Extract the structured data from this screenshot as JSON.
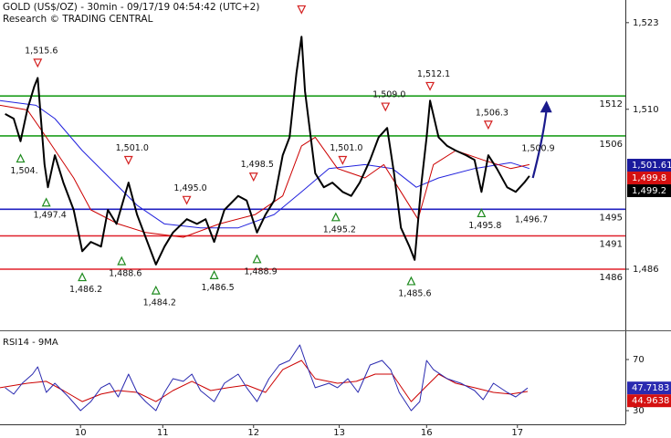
{
  "chart_data": [
    {
      "type": "line",
      "title": "GOLD (US$/OZ) - 30min - 09/17/19 04:54:42 (UTC+2)",
      "subtitle": "Research © TRADING CENTRAL",
      "xlim": [
        0,
        365
      ],
      "ylim": [
        1477.1,
        1526.4
      ],
      "yticks": [
        {
          "value": 1523,
          "label": "1,523"
        },
        {
          "value": 1510,
          "label": "1,510"
        },
        {
          "value": 1486,
          "label": "1,486"
        }
      ],
      "series": [
        {
          "color": "#000000",
          "x": [
            3,
            8,
            12,
            16,
            20,
            22,
            26,
            28,
            32,
            37,
            43,
            48,
            53,
            59,
            63,
            68,
            75,
            80,
            85,
            91,
            96,
            101,
            109,
            115,
            120,
            125,
            131,
            139,
            144,
            150,
            155,
            160,
            165,
            169,
            173,
            176,
            178,
            184,
            189,
            194,
            200,
            205,
            210,
            216,
            221,
            226,
            230,
            234,
            239,
            242,
            246,
            249,
            251,
            256,
            261,
            266,
            272,
            277,
            281,
            285,
            290,
            296,
            301,
            306,
            309
          ],
          "values": [
            1509.3,
            1508.6,
            1505.2,
            1510,
            1513.4,
            1514.7,
            1501.7,
            1498.3,
            1503.1,
            1499,
            1494.9,
            1488.7,
            1490.1,
            1489.4,
            1494.9,
            1492.8,
            1499,
            1494.2,
            1490.8,
            1486.7,
            1489.4,
            1491.5,
            1493.5,
            1492.8,
            1493.5,
            1490.1,
            1494.9,
            1497,
            1496.3,
            1491.5,
            1494.2,
            1496.3,
            1503.1,
            1505.8,
            1515.4,
            1520.9,
            1512.7,
            1500.4,
            1498.3,
            1499,
            1497.6,
            1497,
            1499,
            1502.4,
            1505.8,
            1507.2,
            1500.4,
            1492.2,
            1489.4,
            1487.4,
            1499,
            1505.8,
            1511.3,
            1505.8,
            1504.5,
            1503.8,
            1503.1,
            1502.4,
            1497.6,
            1503.1,
            1501.1,
            1498.3,
            1497.6,
            1499,
            1500
          ]
        },
        {
          "color": "#cc0000",
          "x": [
            0,
            16,
            27,
            43,
            53,
            69,
            85,
            107,
            128,
            149,
            165,
            176,
            184,
            197,
            213,
            224,
            234,
            244,
            253,
            266,
            282,
            298,
            309
          ],
          "values": [
            1510.6,
            1509.9,
            1505.8,
            1499.7,
            1494.9,
            1492.8,
            1491.5,
            1490.8,
            1492.8,
            1494.2,
            1497,
            1504.5,
            1505.8,
            1501.1,
            1499.7,
            1501.7,
            1497.6,
            1493.5,
            1501.7,
            1503.8,
            1502.4,
            1501.1,
            1501.7
          ]
        },
        {
          "color": "#2222dd",
          "x": [
            0,
            21,
            32,
            48,
            64,
            80,
            96,
            117,
            139,
            160,
            176,
            192,
            213,
            229,
            243,
            256,
            277,
            298,
            309
          ],
          "values": [
            1511.3,
            1510.6,
            1508.6,
            1503.8,
            1499.7,
            1495.6,
            1492.8,
            1492.2,
            1492.2,
            1494.2,
            1497.6,
            1501.1,
            1501.7,
            1501.1,
            1498.3,
            1499.7,
            1501.1,
            1502,
            1501.1
          ]
        }
      ],
      "levels": [
        {
          "value": 1512,
          "color": "#1e9e1e"
        },
        {
          "value": 1506,
          "color": "#1e9e1e"
        },
        {
          "value": 1495,
          "color": "#2020c0"
        },
        {
          "value": 1491,
          "color": "#e0202a"
        },
        {
          "value": 1486,
          "color": "#e0202a"
        }
      ],
      "annotations": [
        {
          "x": 22,
          "value": 1515.6,
          "label": "1,515.6",
          "kind": "high",
          "marker": true
        },
        {
          "x": 12,
          "value": 1504,
          "label": "1,504.",
          "kind": "low",
          "marker": true
        },
        {
          "x": 27,
          "value": 1497.4,
          "label": "1,497.4",
          "kind": "low",
          "marker": true
        },
        {
          "x": 48,
          "value": 1486.2,
          "label": "1,486.2",
          "kind": "low",
          "marker": true
        },
        {
          "x": 75,
          "value": 1501.0,
          "label": "1,501.0",
          "kind": "high",
          "marker": true
        },
        {
          "x": 71,
          "value": 1488.6,
          "label": "1,488.6",
          "kind": "low",
          "marker": true
        },
        {
          "x": 91,
          "value": 1484.2,
          "label": "1,484.2",
          "kind": "low",
          "marker": true
        },
        {
          "x": 109,
          "value": 1495.0,
          "label": "1,495.0",
          "kind": "high",
          "marker": true
        },
        {
          "x": 125,
          "value": 1486.5,
          "label": "1,486.5",
          "kind": "low",
          "marker": true
        },
        {
          "x": 148,
          "value": 1498.5,
          "label": "1,498.5",
          "kind": "high",
          "marker": true
        },
        {
          "x": 150,
          "value": 1488.9,
          "label": "1,488.9",
          "kind": "low",
          "marker": true
        },
        {
          "x": 176,
          "value": 1523.6,
          "kind": "high",
          "marker": true
        },
        {
          "x": 200,
          "value": 1501.0,
          "label": "1,501.0",
          "kind": "high",
          "marker": true
        },
        {
          "x": 196,
          "value": 1495.2,
          "label": "1,495.2",
          "kind": "low",
          "marker": true
        },
        {
          "x": 225,
          "value": 1509.0,
          "label": "1,509.0",
          "kind": "high",
          "marker": true
        },
        {
          "x": 240,
          "value": 1485.6,
          "label": "1,485.6",
          "kind": "low",
          "marker": true
        },
        {
          "x": 251,
          "value": 1512.1,
          "label": "1,512.1",
          "kind": "high",
          "marker": true
        },
        {
          "x": 285,
          "value": 1506.3,
          "label": "1,506.3",
          "kind": "high",
          "marker": true
        },
        {
          "x": 281,
          "value": 1495.8,
          "label": "1,495.8",
          "kind": "low",
          "marker": true
        },
        {
          "x": 308,
          "value": 1496.7,
          "label": "1,496.7",
          "kind": "low",
          "marker": false
        },
        {
          "x": 312,
          "value": 1500.9,
          "label": "1,500.9",
          "kind": "high",
          "marker": false
        }
      ],
      "projection": {
        "color": "#1a1a8c",
        "x": [
          311,
          319
        ],
        "values": [
          1499.7,
          1511.3
        ]
      },
      "price_tags": [
        {
          "value": 1501.61,
          "label": "1,501.61",
          "color": "#1a1a9c"
        },
        {
          "value": 1499.8,
          "label": "1,499.8",
          "color": "#d41010"
        },
        {
          "value": 1499.2,
          "label": "1,499.2",
          "color": "#000000"
        }
      ]
    },
    {
      "type": "line",
      "title": "RSI14 - 9MA",
      "xlim": [
        0,
        365
      ],
      "ylim": [
        19.3,
        90.7
      ],
      "yticks": [
        70,
        30
      ],
      "xticks": [
        {
          "value": 47,
          "label": "10"
        },
        {
          "value": 95,
          "label": "11"
        },
        {
          "value": 148,
          "label": "12"
        },
        {
          "value": 198,
          "label": "13"
        },
        {
          "value": 249,
          "label": "16"
        },
        {
          "value": 302,
          "label": "17"
        }
      ],
      "series": [
        {
          "color": "#2a2ab0",
          "x": [
            3,
            8,
            13,
            19,
            22,
            27,
            32,
            40,
            47,
            53,
            59,
            64,
            69,
            75,
            80,
            85,
            91,
            96,
            101,
            107,
            112,
            117,
            125,
            131,
            139,
            144,
            150,
            157,
            163,
            169,
            175,
            179,
            184,
            192,
            197,
            203,
            209,
            216,
            223,
            228,
            233,
            240,
            245,
            249,
            253,
            261,
            269,
            277,
            282,
            288,
            296,
            301,
            308
          ],
          "values": [
            47.9,
            42.9,
            51.4,
            58.6,
            64.3,
            44.3,
            51.4,
            40.7,
            30,
            37.1,
            47.9,
            51.4,
            40.7,
            58.6,
            44.3,
            37.1,
            30,
            44.3,
            55,
            52.9,
            58.6,
            45.7,
            37.1,
            51.4,
            58.6,
            47.9,
            37.1,
            55,
            65.7,
            69.3,
            81.4,
            65.7,
            47.9,
            51.4,
            47.9,
            55,
            44.3,
            65.7,
            69.3,
            62.1,
            44.3,
            30,
            37.1,
            69.3,
            62.1,
            55,
            51.4,
            45.7,
            38.6,
            51.4,
            44.3,
            40.7,
            47.7
          ]
        },
        {
          "color": "#cc0000",
          "x": [
            0,
            16,
            27,
            37,
            48,
            59,
            69,
            80,
            91,
            101,
            112,
            123,
            133,
            144,
            155,
            165,
            176,
            184,
            197,
            208,
            219,
            229,
            240,
            248,
            256,
            266,
            277,
            288,
            298,
            308
          ],
          "values": [
            47.9,
            51.4,
            52.9,
            45.7,
            37.1,
            42.9,
            45.7,
            44.3,
            37.1,
            45.7,
            52.9,
            45.7,
            47.9,
            50,
            44.3,
            62.1,
            69.3,
            55,
            51.4,
            52.9,
            58.6,
            58.6,
            37.1,
            47.9,
            58.6,
            51.4,
            47.9,
            44.3,
            42.9,
            45
          ]
        }
      ],
      "price_tags": [
        {
          "value": 47.7183,
          "label": "47.7183",
          "color": "#2a2ab0"
        },
        {
          "value": 44.9638,
          "label": "44.9638",
          "color": "#d41010"
        }
      ]
    }
  ]
}
